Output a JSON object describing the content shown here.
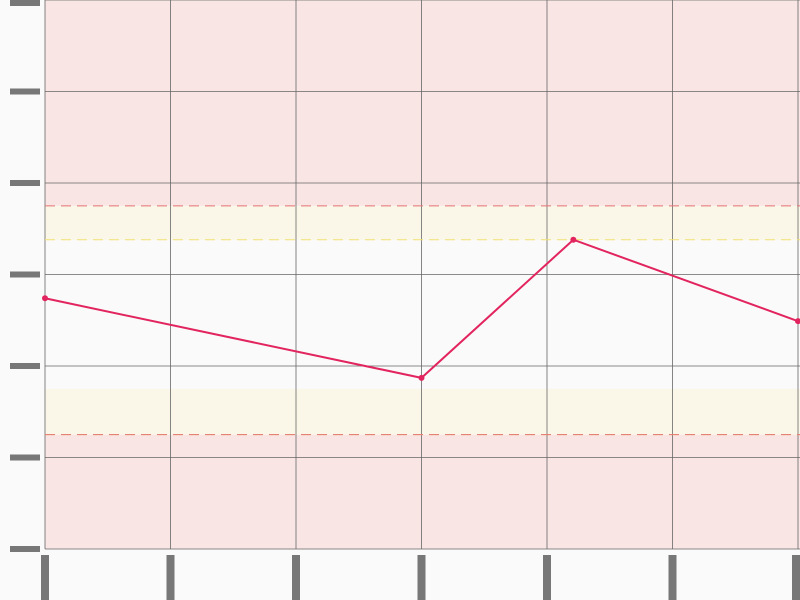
{
  "chart_data": {
    "type": "line",
    "x": [
      0,
      3,
      4.21,
      6
    ],
    "series": [
      {
        "color": "#e2245f",
        "values": [
          2.74,
          1.87,
          3.38,
          2.49
        ]
      }
    ],
    "xlim": [
      0,
      6
    ],
    "xticks": [
      0,
      1,
      2,
      3,
      4,
      5,
      6
    ],
    "ylim": [
      0,
      6
    ],
    "yticks": [
      0,
      1,
      2,
      3,
      4,
      5,
      6
    ],
    "grid": true,
    "bands": [
      {
        "from": 3.75,
        "to": 6,
        "color": "#f9e6e4",
        "edge": "#e57373"
      },
      {
        "from": 3.38,
        "to": 3.75,
        "color": "#fbf7e8",
        "edge": "#f0e070"
      },
      {
        "from": 1.25,
        "to": 1.75,
        "color": "#fbf7e8",
        "edge": "#f0e070"
      },
      {
        "from": 0,
        "to": 1.25,
        "color": "#f9e6e4",
        "edge": "#e57373"
      }
    ]
  }
}
